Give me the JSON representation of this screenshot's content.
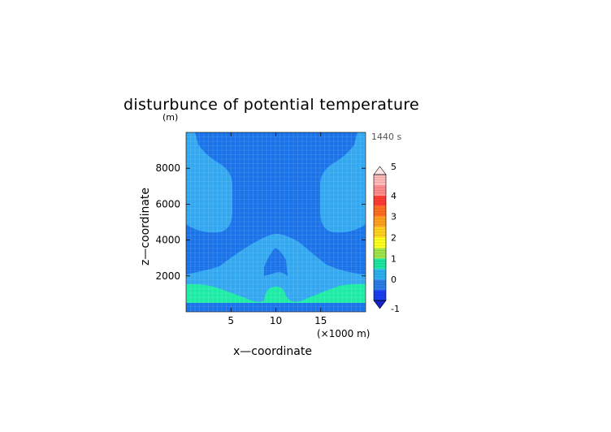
{
  "chart_data": {
    "type": "contour",
    "title": "disturbunce of potential temperature",
    "units_label": "(m)",
    "time_label": "1440 s",
    "xlabel": "x—coordinate",
    "ylabel": "z—coordinate",
    "x_unit_label": "(×1000 m)",
    "xlim": [
      0,
      20
    ],
    "ylim": [
      0,
      10000
    ],
    "x_ticks": [
      5,
      10,
      15
    ],
    "x_tick_labels": [
      "5",
      "10",
      "15"
    ],
    "y_ticks": [
      2000,
      4000,
      6000,
      8000
    ],
    "y_tick_labels": [
      "2000",
      "4000",
      "6000",
      "8000"
    ],
    "grid": true,
    "colorbar": {
      "levels": [
        -1,
        -0.5,
        0,
        0.5,
        1,
        1.5,
        2,
        2.5,
        3,
        3.5,
        4,
        4.5,
        5
      ],
      "tick_labels": [
        "-1",
        "0",
        "1",
        "2",
        "3",
        "4",
        "5"
      ],
      "colors": [
        "#1a3cf0",
        "#2a7de6",
        "#2fb0ee",
        "#1ee6a0",
        "#9fe64a",
        "#ffff1e",
        "#ffd21e",
        "#ffa01e",
        "#ff6e1e",
        "#ff3c32",
        "#ff8c8c",
        "#ffb9b9"
      ],
      "extend": "both",
      "under_color": "#1423c8",
      "over_color": "#ffe6e6"
    },
    "regions": [
      {
        "name": "background",
        "range": [
          -0.5,
          0
        ],
        "color": "#1a73e8"
      },
      {
        "name": "upper-left-warm",
        "range": [
          0,
          0.5
        ],
        "color": "#33a8f0"
      },
      {
        "name": "upper-right-warm",
        "range": [
          0,
          0.5
        ],
        "color": "#33a8f0"
      },
      {
        "name": "mid-band-warm",
        "range": [
          0,
          0.5
        ],
        "color": "#33a8f0"
      },
      {
        "name": "low-band-warm",
        "range": [
          0.5,
          1
        ],
        "color": "#1eeba5"
      },
      {
        "name": "central-bubble-core",
        "range": [
          -0.5,
          0
        ],
        "color": "#1a73e8"
      },
      {
        "name": "bottom-strip",
        "range": [
          -0.5,
          0
        ],
        "color": "#1a73e8"
      }
    ]
  }
}
